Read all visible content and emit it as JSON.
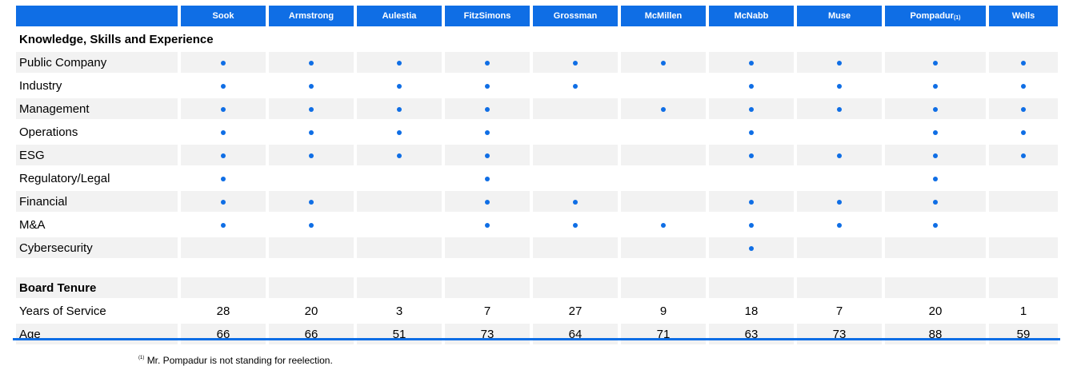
{
  "directors": [
    "Sook",
    "Armstrong",
    "Aulestia",
    "FitzSimons",
    "Grossman",
    "McMillen",
    "McNabb",
    "Muse",
    "Pompadur",
    "Wells"
  ],
  "director_marks": {
    "Pompadur": "(1)"
  },
  "skills_section": {
    "title": "Knowledge, Skills and Experience",
    "rows": [
      {
        "label": "Public Company",
        "marks": [
          true,
          true,
          true,
          true,
          true,
          true,
          true,
          true,
          true,
          true
        ]
      },
      {
        "label": "Industry",
        "marks": [
          true,
          true,
          true,
          true,
          true,
          false,
          true,
          true,
          true,
          true
        ]
      },
      {
        "label": "Management",
        "marks": [
          true,
          true,
          true,
          true,
          false,
          true,
          true,
          true,
          true,
          true
        ]
      },
      {
        "label": "Operations",
        "marks": [
          true,
          true,
          true,
          true,
          false,
          false,
          true,
          false,
          true,
          true
        ]
      },
      {
        "label": "ESG",
        "marks": [
          true,
          true,
          true,
          true,
          false,
          false,
          true,
          true,
          true,
          true
        ]
      },
      {
        "label": "Regulatory/Legal",
        "marks": [
          true,
          false,
          false,
          true,
          false,
          false,
          false,
          false,
          true,
          false
        ]
      },
      {
        "label": "Financial",
        "marks": [
          true,
          true,
          false,
          true,
          true,
          false,
          true,
          true,
          true,
          false
        ]
      },
      {
        "label": "M&A",
        "marks": [
          true,
          true,
          false,
          true,
          true,
          true,
          true,
          true,
          true,
          false
        ]
      },
      {
        "label": "Cybersecurity",
        "marks": [
          false,
          false,
          false,
          false,
          false,
          false,
          true,
          false,
          false,
          false
        ]
      }
    ]
  },
  "tenure_section": {
    "title": "Board Tenure",
    "rows": [
      {
        "label": "Years of Service",
        "values": [
          "28",
          "20",
          "3",
          "7",
          "27",
          "9",
          "18",
          "7",
          "20",
          "1"
        ]
      },
      {
        "label": "Age",
        "values": [
          "66",
          "66",
          "51",
          "73",
          "64",
          "71",
          "63",
          "73",
          "88",
          "59"
        ]
      }
    ]
  },
  "footnote": {
    "mark": "(1)",
    "text": "Mr. Pompadur is not standing for reelection."
  },
  "colors": {
    "accent": "#0f6ee5",
    "row_shade": "#f2f2f2"
  }
}
